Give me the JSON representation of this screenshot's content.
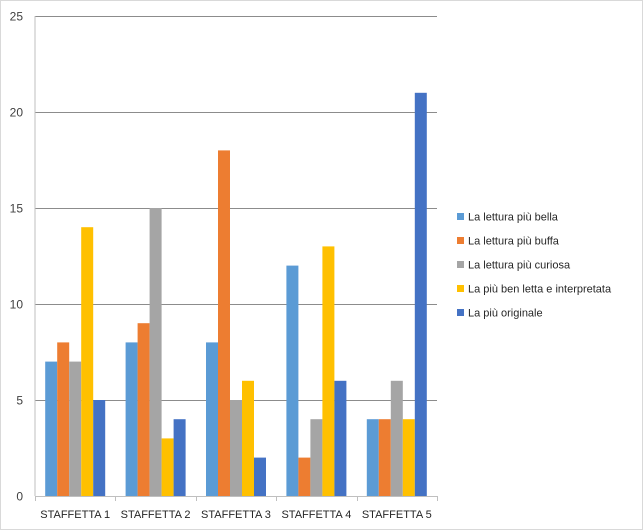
{
  "chart_data": {
    "type": "bar",
    "title": "",
    "xlabel": "",
    "ylabel": "",
    "ylim": [
      0,
      25
    ],
    "yticks": [
      0,
      5,
      10,
      15,
      20,
      25
    ],
    "grid": true,
    "legend_position": "right",
    "categories": [
      "STAFFETTA 1",
      "STAFFETTA 2",
      "STAFFETTA 3",
      "STAFFETTA 4",
      "STAFFETTA 5"
    ],
    "series": [
      {
        "name": "La lettura più bella",
        "color": "#5B9BD5",
        "values": [
          7,
          8,
          8,
          12,
          4
        ]
      },
      {
        "name": "La lettura più buffa",
        "color": "#ED7D31",
        "values": [
          8,
          9,
          18,
          2,
          4
        ]
      },
      {
        "name": "La lettura più curiosa",
        "color": "#A5A5A5",
        "values": [
          7,
          15,
          5,
          4,
          6
        ]
      },
      {
        "name": "La più ben letta e interpretata",
        "color": "#FFC000",
        "values": [
          14,
          3,
          6,
          13,
          4
        ]
      },
      {
        "name": "La più originale",
        "color": "#4472C4",
        "values": [
          5,
          4,
          2,
          6,
          21
        ]
      }
    ]
  }
}
